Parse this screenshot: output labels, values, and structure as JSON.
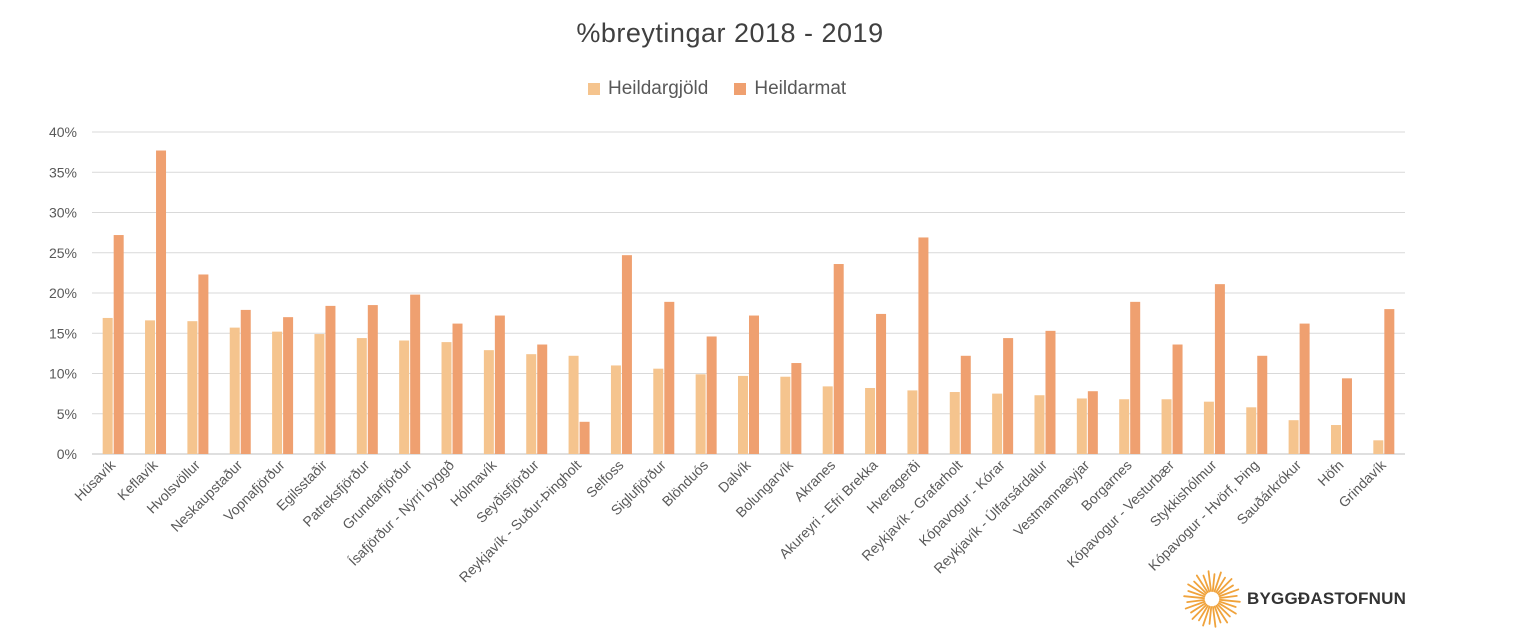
{
  "chart_data": {
    "type": "bar",
    "title": "%breytingar 2018 - 2019",
    "ylim": [
      0,
      40
    ],
    "yticks": [
      "0%",
      "5%",
      "10%",
      "15%",
      "20%",
      "25%",
      "30%",
      "35%",
      "40%"
    ],
    "legend_position": "top",
    "categories": [
      "Húsavík",
      "Keflavík",
      "Hvolsvöllur",
      "Neskaupstaður",
      "Vopnafjörður",
      "Egilsstaðir",
      "Patreksfjörður",
      "Grundarfjörður",
      "Ísafjörður - Nýrri byggð",
      "Hólmavík",
      "Seyðisfjörður",
      "Reykjavík - Suður-Þingholt",
      "Selfoss",
      "Siglufjörður",
      "Blönduós",
      "Dalvík",
      "Bolungarvík",
      "Akranes",
      "Akureyri - Efri Brekka",
      "Hveragerði",
      "Reykjavík - Grafarholt",
      "Kópavogur - Kórar",
      "Reykjavík - Úlfarsárdalur",
      "Vestmannaeyjar",
      "Borgarnes",
      "Kópavogur - Vesturbær",
      "Stykkishólmur",
      "Kópavogur - Hvörf, Þing",
      "Sauðárkrókur",
      "Höfn",
      "Grindavík"
    ],
    "series": [
      {
        "name": "Heildargjöld",
        "color": "#F5C48E",
        "values": [
          16.9,
          16.6,
          16.5,
          15.7,
          15.2,
          14.9,
          14.4,
          14.1,
          13.9,
          12.9,
          12.4,
          12.2,
          11.0,
          10.6,
          9.9,
          9.7,
          9.6,
          8.4,
          8.2,
          7.9,
          7.7,
          7.5,
          7.3,
          6.9,
          6.8,
          6.8,
          6.5,
          5.8,
          4.2,
          3.6,
          1.7
        ]
      },
      {
        "name": "Heildarmat",
        "color": "#EFA070",
        "values": [
          27.2,
          37.7,
          22.3,
          17.9,
          17.0,
          18.4,
          18.5,
          19.8,
          16.2,
          17.2,
          13.6,
          4.0,
          24.7,
          18.9,
          14.6,
          17.2,
          11.3,
          23.6,
          17.4,
          26.9,
          12.2,
          14.4,
          15.3,
          7.8,
          18.9,
          13.6,
          21.1,
          12.2,
          16.2,
          9.4,
          18.0
        ]
      }
    ]
  },
  "logo": {
    "text": "BYGGÐASTOFNUN",
    "icon": "sunburst-icon",
    "color": "#F0A33C"
  }
}
